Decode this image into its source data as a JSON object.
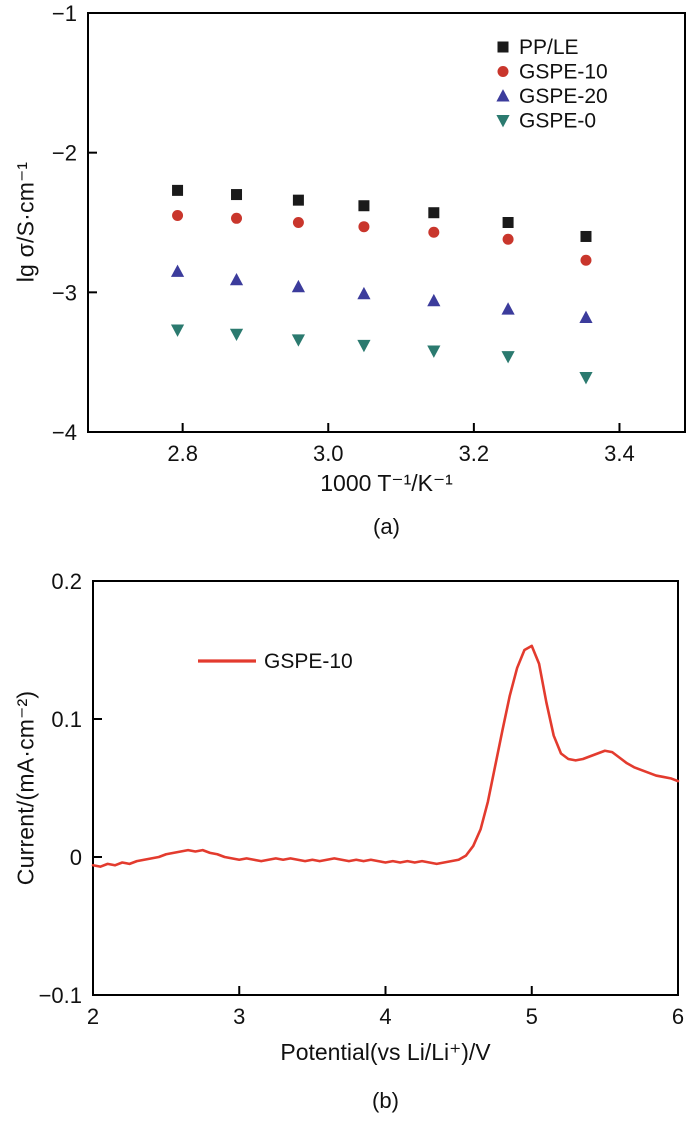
{
  "chart_data": [
    {
      "type": "scatter",
      "caption": "(a)",
      "xlabel": "1000 T⁻¹/K⁻¹",
      "ylabel": "lg σ/S·cm⁻¹",
      "xlim": [
        2.67,
        3.49
      ],
      "ylim": [
        -4,
        -1
      ],
      "xticks": {
        "values": [
          2.8,
          3.0,
          3.2,
          3.4
        ],
        "labels": [
          "2.8",
          "3.0",
          "3.2",
          "3.4"
        ]
      },
      "yticks": {
        "values": [
          -4,
          -3,
          -2,
          -1
        ],
        "labels": [
          "−4",
          "−3",
          "−2",
          "−1"
        ]
      },
      "grid": false,
      "legend_position": "top-right",
      "x": [
        2.793,
        2.874,
        2.959,
        3.049,
        3.145,
        3.247,
        3.354
      ],
      "series": [
        {
          "name": "PP/LE",
          "marker": "square",
          "color": "#1a1a1a",
          "values": [
            -2.27,
            -2.3,
            -2.34,
            -2.38,
            -2.43,
            -2.5,
            -2.6
          ]
        },
        {
          "name": "GSPE-10",
          "marker": "circle",
          "color": "#c9362c",
          "values": [
            -2.45,
            -2.47,
            -2.5,
            -2.53,
            -2.57,
            -2.62,
            -2.77
          ]
        },
        {
          "name": "GSPE-20",
          "marker": "triangle-up",
          "color": "#3c3c9c",
          "values": [
            -2.85,
            -2.91,
            -2.96,
            -3.01,
            -3.06,
            -3.12,
            -3.18
          ]
        },
        {
          "name": "GSPE-0",
          "marker": "triangle-down",
          "color": "#2b7a6f",
          "values": [
            -3.27,
            -3.3,
            -3.34,
            -3.38,
            -3.42,
            -3.46,
            -3.61
          ]
        }
      ]
    },
    {
      "type": "line",
      "caption": "(b)",
      "xlabel": "Potential(vs Li/Li⁺)/V",
      "ylabel": "Current/(mA·cm⁻²)",
      "xlim": [
        2,
        6
      ],
      "ylim": [
        -0.1,
        0.2
      ],
      "xticks": {
        "values": [
          2,
          3,
          4,
          5,
          6
        ],
        "labels": [
          "2",
          "3",
          "4",
          "5",
          "6"
        ]
      },
      "yticks": {
        "values": [
          -0.1,
          0,
          0.1,
          0.2
        ],
        "labels": [
          "−0.1",
          "0",
          "0.1",
          "0.2"
        ]
      },
      "grid": false,
      "legend_position": "upper-left",
      "series": [
        {
          "name": "GSPE-10",
          "color": "#e33b2e",
          "x": [
            2.0,
            2.05,
            2.1,
            2.15,
            2.2,
            2.25,
            2.3,
            2.35,
            2.4,
            2.45,
            2.5,
            2.55,
            2.6,
            2.65,
            2.7,
            2.75,
            2.8,
            2.85,
            2.9,
            2.95,
            3.0,
            3.05,
            3.1,
            3.15,
            3.2,
            3.25,
            3.3,
            3.35,
            3.4,
            3.45,
            3.5,
            3.55,
            3.6,
            3.65,
            3.7,
            3.75,
            3.8,
            3.85,
            3.9,
            3.95,
            4.0,
            4.05,
            4.1,
            4.15,
            4.2,
            4.25,
            4.3,
            4.35,
            4.4,
            4.45,
            4.5,
            4.55,
            4.6,
            4.65,
            4.7,
            4.75,
            4.8,
            4.85,
            4.9,
            4.95,
            5.0,
            5.05,
            5.1,
            5.15,
            5.2,
            5.25,
            5.3,
            5.35,
            5.4,
            5.45,
            5.5,
            5.55,
            5.6,
            5.65,
            5.7,
            5.75,
            5.8,
            5.85,
            5.9,
            5.95,
            6.0
          ],
          "y": [
            -0.006,
            -0.007,
            -0.005,
            -0.006,
            -0.004,
            -0.005,
            -0.003,
            -0.002,
            -0.001,
            0.0,
            0.002,
            0.003,
            0.004,
            0.005,
            0.004,
            0.005,
            0.003,
            0.002,
            0.0,
            -0.001,
            -0.002,
            -0.001,
            -0.002,
            -0.003,
            -0.002,
            -0.001,
            -0.002,
            -0.001,
            -0.002,
            -0.003,
            -0.002,
            -0.003,
            -0.002,
            -0.001,
            -0.002,
            -0.003,
            -0.002,
            -0.003,
            -0.002,
            -0.003,
            -0.004,
            -0.003,
            -0.004,
            -0.003,
            -0.004,
            -0.003,
            -0.004,
            -0.005,
            -0.004,
            -0.003,
            -0.002,
            0.001,
            0.008,
            0.02,
            0.04,
            0.066,
            0.092,
            0.117,
            0.137,
            0.15,
            0.153,
            0.14,
            0.112,
            0.088,
            0.075,
            0.071,
            0.07,
            0.071,
            0.073,
            0.075,
            0.077,
            0.076,
            0.072,
            0.068,
            0.065,
            0.063,
            0.061,
            0.059,
            0.058,
            0.057,
            0.055
          ]
        }
      ]
    }
  ]
}
